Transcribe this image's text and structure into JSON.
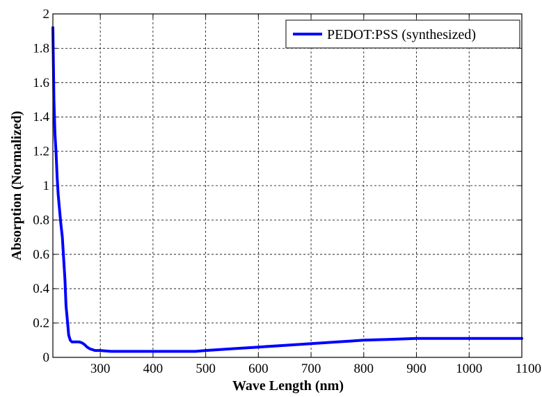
{
  "chart_data": {
    "type": "line",
    "xlabel": "Wave Length (nm)",
    "ylabel": "Absorption (Normalized)",
    "xlim": [
      210,
      1100
    ],
    "ylim": [
      0,
      2
    ],
    "x_ticks": [
      300,
      400,
      500,
      600,
      700,
      800,
      900,
      1000,
      1100
    ],
    "y_ticks": [
      0,
      0.2,
      0.4,
      0.6,
      0.8,
      1,
      1.2,
      1.4,
      1.6,
      1.8,
      2
    ],
    "grid": true,
    "legend_position": "top-right",
    "series": [
      {
        "name": "PEDOT:PSS (synthesized)",
        "color": "#0000ff",
        "x": [
          210,
          212,
          214,
          216,
          218,
          220,
          222,
          225,
          228,
          230,
          233,
          235,
          238,
          240,
          243,
          246,
          250,
          255,
          260,
          265,
          270,
          275,
          280,
          290,
          300,
          320,
          350,
          400,
          450,
          480,
          500,
          550,
          600,
          650,
          700,
          750,
          800,
          850,
          900,
          950,
          1000,
          1050,
          1100
        ],
        "y": [
          1.92,
          1.5,
          1.3,
          1.2,
          1.05,
          0.95,
          0.88,
          0.78,
          0.7,
          0.6,
          0.45,
          0.3,
          0.2,
          0.13,
          0.1,
          0.09,
          0.09,
          0.09,
          0.09,
          0.085,
          0.075,
          0.06,
          0.05,
          0.04,
          0.04,
          0.035,
          0.035,
          0.035,
          0.035,
          0.035,
          0.04,
          0.05,
          0.06,
          0.07,
          0.08,
          0.09,
          0.1,
          0.105,
          0.11,
          0.11,
          0.11,
          0.11,
          0.11
        ]
      }
    ]
  }
}
